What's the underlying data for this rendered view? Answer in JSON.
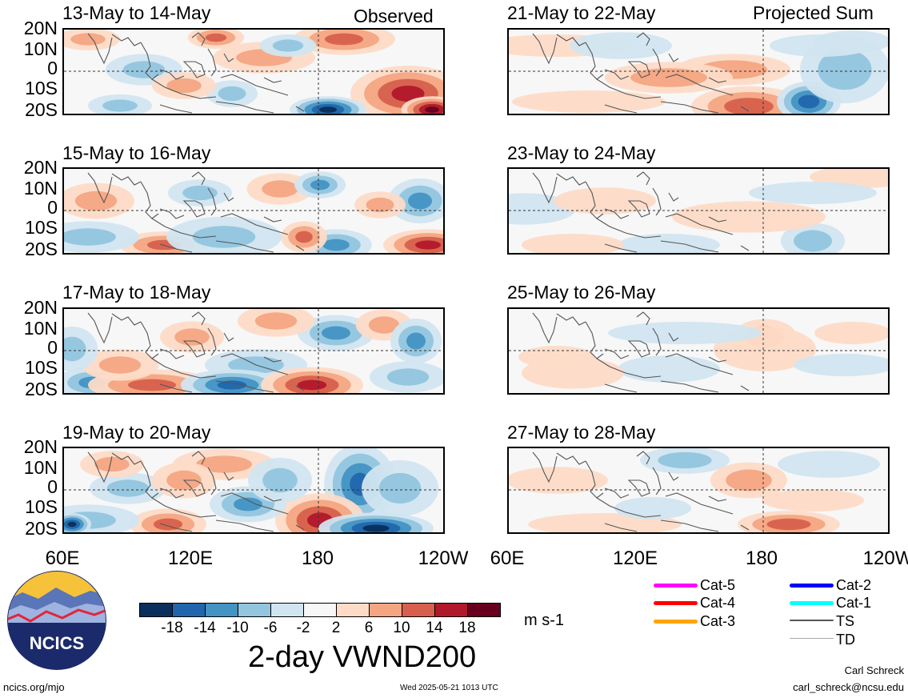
{
  "corner_labels": {
    "left": "Observed",
    "right": "Projected Sum"
  },
  "panels": [
    {
      "title": "13-May to 14-May"
    },
    {
      "title": "15-May to 16-May"
    },
    {
      "title": "17-May to 18-May"
    },
    {
      "title": "19-May to 20-May"
    },
    {
      "title": "21-May to 22-May"
    },
    {
      "title": "23-May to 24-May"
    },
    {
      "title": "25-May to 26-May"
    },
    {
      "title": "27-May to 28-May"
    }
  ],
  "lat_labels": [
    "20N",
    "10N",
    "0",
    "10S",
    "20S"
  ],
  "lon_labels": [
    "60E",
    "120E",
    "180",
    "120W"
  ],
  "colorbar": {
    "colors": [
      "#0a2f5c",
      "#2166ac",
      "#4393c3",
      "#92c5de",
      "#d1e5f0",
      "#f7f7f7",
      "#fddbc7",
      "#f4a582",
      "#d6604d",
      "#b2182b",
      "#67001f"
    ],
    "ticks": [
      "-18",
      "-14",
      "-10",
      "-6",
      "-2",
      "2",
      "6",
      "10",
      "14",
      "18"
    ],
    "units": "m s-1"
  },
  "title": "2-day VWND200",
  "legend": [
    {
      "label": "Cat-5",
      "color": "#ff00ff"
    },
    {
      "label": "Cat-4",
      "color": "#ff0000"
    },
    {
      "label": "Cat-3",
      "color": "#ffa500"
    },
    {
      "label": "Cat-2",
      "color": "#0000ff"
    },
    {
      "label": "Cat-1",
      "color": "#00ffff"
    },
    {
      "label": "TS",
      "color": "#555555"
    },
    {
      "label": "TD",
      "color": "#aaaaaa"
    }
  ],
  "logo": {
    "text": "NCICS"
  },
  "footer": {
    "url": "ncics.org/mjo",
    "timestamp": "Wed 2025-05-21 1013 UTC",
    "author": "Carl Schreck",
    "email": "carl_schreck@ncsu.edu"
  }
}
